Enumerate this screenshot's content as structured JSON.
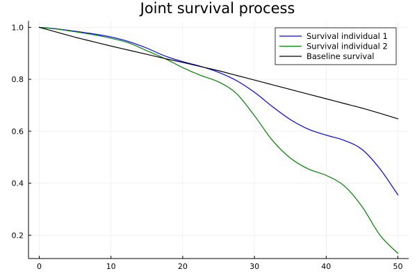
{
  "chart_data": {
    "type": "line",
    "title": "Joint survival process",
    "xlabel": "",
    "ylabel": "",
    "xlim": [
      -1.5,
      51.5
    ],
    "ylim": [
      0.11,
      1.025
    ],
    "xticks": [
      0,
      10,
      20,
      30,
      40,
      50
    ],
    "yticks": [
      0.2,
      0.4,
      0.6,
      0.8,
      1.0
    ],
    "xtick_labels": [
      "0",
      "10",
      "20",
      "30",
      "40",
      "50"
    ],
    "ytick_labels": [
      "0.2",
      "0.4",
      "0.6",
      "0.8",
      "1.0"
    ],
    "grid": true,
    "legend_position": "top-right",
    "x": [
      0,
      2.5,
      5,
      7.5,
      10,
      12.5,
      15,
      17.5,
      20,
      22.5,
      25,
      27.5,
      30,
      32.5,
      35,
      37.5,
      40,
      42.5,
      45,
      47.5,
      50
    ],
    "series": [
      {
        "name": "Survival individual 1",
        "color": "#0000ff",
        "values": [
          1.0,
          0.994,
          0.985,
          0.975,
          0.963,
          0.945,
          0.92,
          0.89,
          0.868,
          0.85,
          0.827,
          0.795,
          0.75,
          0.695,
          0.645,
          0.608,
          0.585,
          0.565,
          0.53,
          0.455,
          0.355
        ]
      },
      {
        "name": "Survival individual 2",
        "color": "#008000",
        "values": [
          1.0,
          0.993,
          0.983,
          0.972,
          0.958,
          0.94,
          0.91,
          0.88,
          0.845,
          0.815,
          0.79,
          0.745,
          0.66,
          0.565,
          0.497,
          0.455,
          0.43,
          0.39,
          0.31,
          0.2,
          0.13
        ]
      },
      {
        "name": "Baseline survival",
        "color": "#000000",
        "values": [
          1.0,
          0.981,
          0.962,
          0.945,
          0.928,
          0.912,
          0.896,
          0.88,
          0.865,
          0.849,
          0.833,
          0.815,
          0.797,
          0.779,
          0.761,
          0.743,
          0.725,
          0.707,
          0.689,
          0.669,
          0.648
        ]
      }
    ]
  }
}
